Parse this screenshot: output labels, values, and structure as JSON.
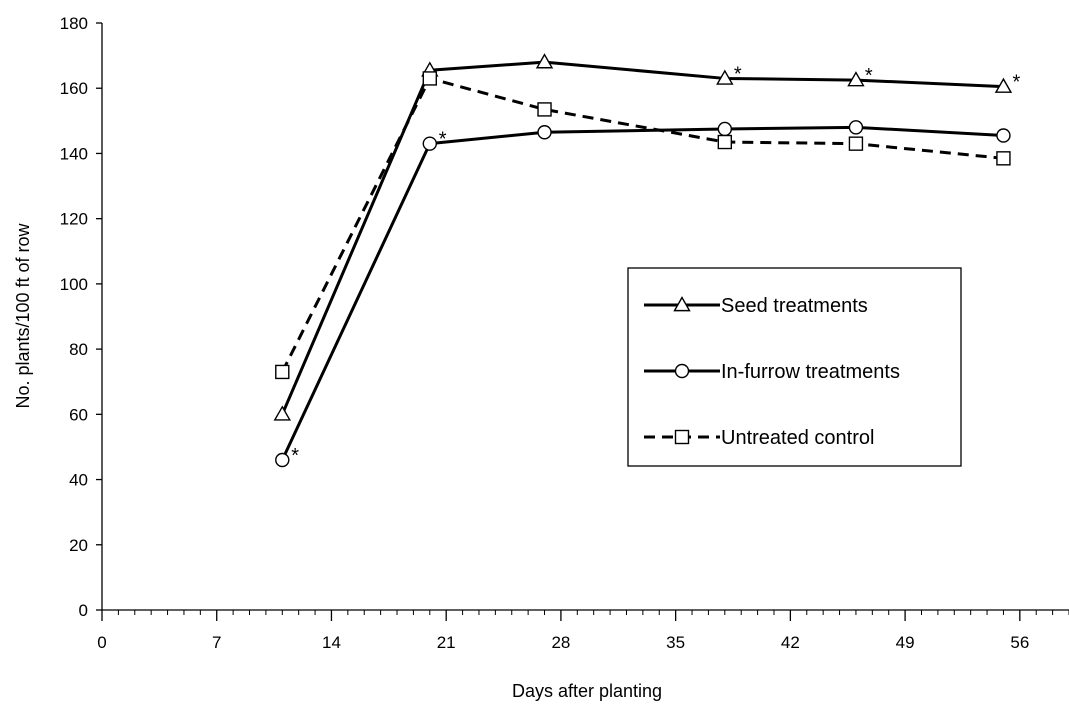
{
  "chart_data": {
    "type": "line",
    "title": "",
    "xlabel": "Days after planting",
    "ylabel": "No. plants/100 ft of row",
    "xlim": [
      0,
      59
    ],
    "ylim": [
      0,
      180
    ],
    "x_major_ticks": [
      0,
      7,
      14,
      21,
      28,
      35,
      42,
      49,
      56
    ],
    "x_minor_step": 1,
    "y_ticks": [
      0,
      20,
      40,
      60,
      80,
      100,
      120,
      140,
      160,
      180
    ],
    "grid": false,
    "legend_position": "right",
    "series": [
      {
        "name": "Seed treatments",
        "marker": "triangle",
        "line_style": "solid",
        "x": [
          11,
          20,
          27,
          38,
          46,
          55
        ],
        "y": [
          60,
          165.5,
          168,
          163,
          162.5,
          160.5
        ],
        "significant": [
          false,
          false,
          false,
          true,
          true,
          true
        ]
      },
      {
        "name": "In-furrow treatments",
        "marker": "circle",
        "line_style": "solid",
        "x": [
          11,
          20,
          27,
          38,
          46,
          55
        ],
        "y": [
          46,
          143,
          146.5,
          147.5,
          148,
          145.5
        ],
        "significant": [
          true,
          true,
          false,
          false,
          false,
          false
        ]
      },
      {
        "name": "Untreated control",
        "marker": "square",
        "line_style": "dashed",
        "x": [
          11,
          20,
          27,
          38,
          46,
          55
        ],
        "y": [
          73,
          163,
          153.5,
          143.5,
          143,
          138.5
        ],
        "significant": [
          false,
          false,
          false,
          false,
          false,
          false
        ]
      }
    ],
    "annotation_symbol": "*",
    "colors": {
      "line": "#000000",
      "marker_fill": "#ffffff",
      "background": "#ffffff"
    }
  }
}
